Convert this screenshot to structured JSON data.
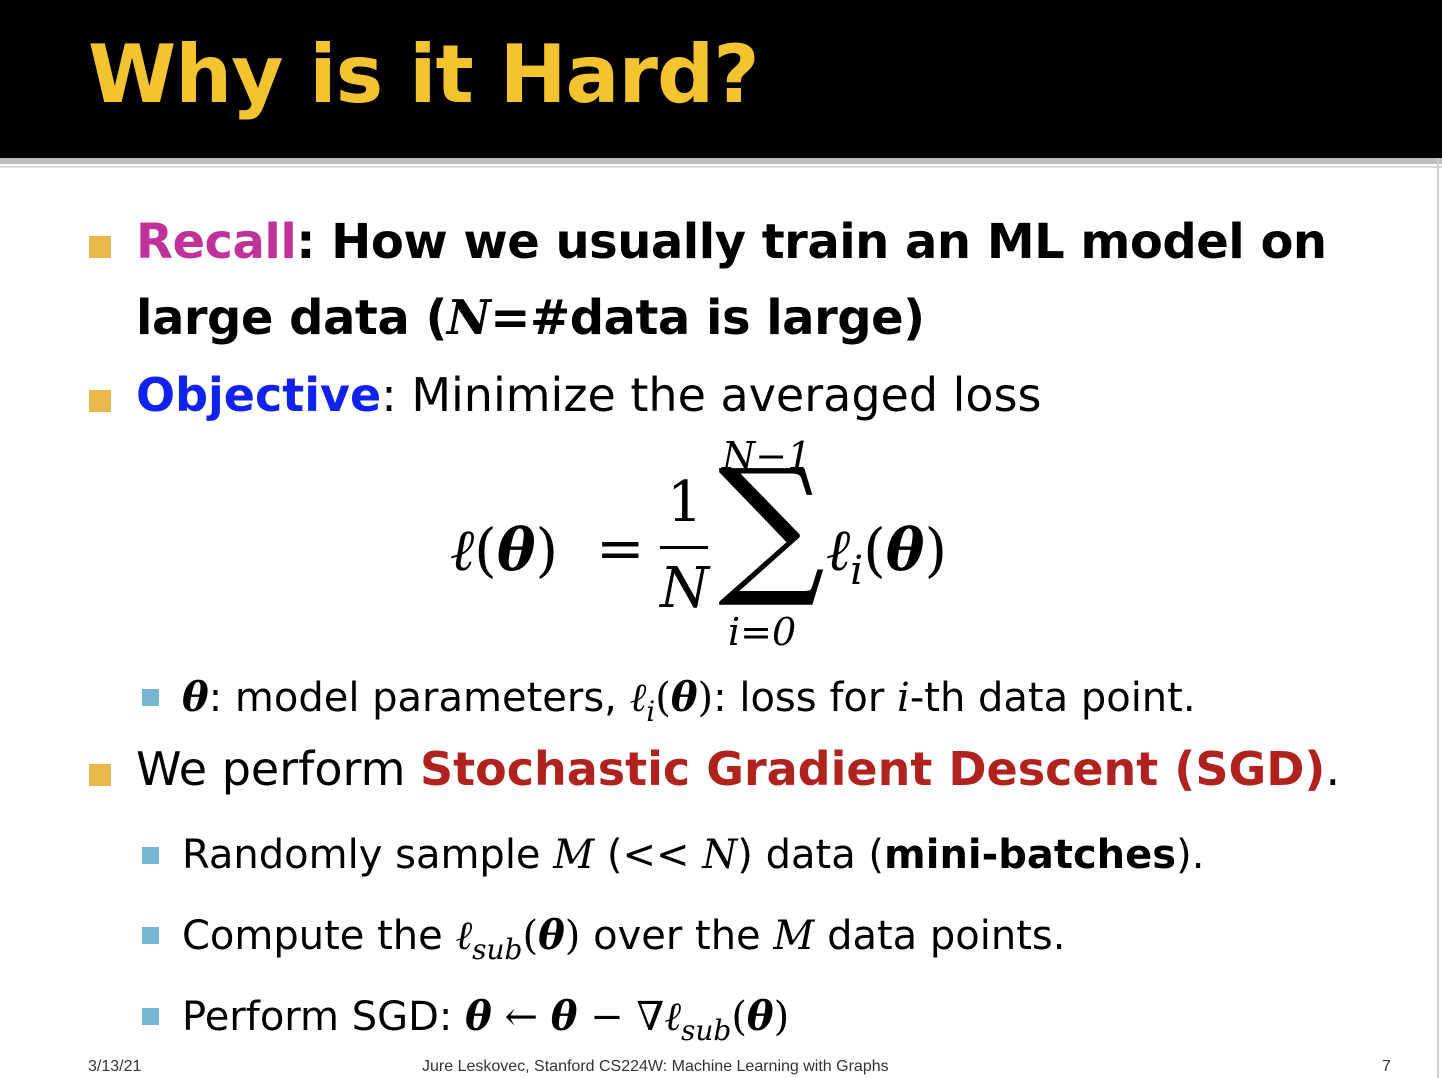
{
  "slide": {
    "title": "Why is it Hard?",
    "bullets": {
      "recall_label": "Recall",
      "recall_text_1": ": How we usually train an ML model on",
      "recall_text_2_a": "large data (",
      "recall_text_2_N": "N",
      "recall_text_2_b": "=#data is large)",
      "objective_label": "Objective",
      "objective_text": ": Minimize the averaged loss",
      "theta_sym": "θ",
      "sub1_a": ": model parameters, ",
      "sub1_ell": "ℓ",
      "sub1_i": "i",
      "sub1_paren": "(",
      "sub1_theta": "θ",
      "sub1_paren2": ")",
      "sub1_b": ": loss for ",
      "sub1_i2": "i",
      "sub1_c": "-th data point.",
      "sgd_a": "We perform ",
      "sgd_label": "Stochastic Gradient Descent (SGD)",
      "sgd_b": ".",
      "sub2_a": "Randomly sample ",
      "sub2_M": "M",
      "sub2_b": " (<< ",
      "sub2_N": "N",
      "sub2_c": ") data (",
      "sub2_bold": "mini-batches",
      "sub2_d": ").",
      "sub3_a": "Compute the ",
      "sub3_ell": "ℓ",
      "sub3_sub": "sub",
      "sub3_paren": "(",
      "sub3_theta": "θ",
      "sub3_paren2": ")",
      "sub3_b": " over the ",
      "sub3_M": "M",
      "sub3_c": " data points.",
      "sub4_a": "Perform SGD: ",
      "sub4_theta1": "θ",
      "sub4_arrow": " ← ",
      "sub4_theta2": "θ",
      "sub4_minus": "  − ∇",
      "sub4_ell": "ℓ",
      "sub4_sub": "sub",
      "sub4_paren": "(",
      "sub4_theta3": "θ",
      "sub4_paren2": ")"
    },
    "equation": {
      "lhs_ell": "ℓ",
      "lhs_paren_open": "(",
      "lhs_theta": "θ",
      "lhs_paren_close": ")",
      "equals": "=",
      "numerator": "1",
      "denominator": "N",
      "sigma": "∑",
      "upper_limit": "N−1",
      "lower_limit": "i=0",
      "rhs_ell": "ℓ",
      "rhs_i": "i",
      "rhs_paren_open": "(",
      "rhs_theta": "θ",
      "rhs_paren_close": ")"
    },
    "footer": {
      "date": "3/13/21",
      "center": "Jure Leskovec, Stanford CS224W: Machine Learning with Graphs",
      "page": "7"
    },
    "colors": {
      "title": "#f4c430",
      "recall": "#c0329a",
      "objective": "#1122ee",
      "sgd": "#b0221e",
      "bullet_level1": "#e8b84a",
      "bullet_level2": "#75b6d2"
    }
  }
}
